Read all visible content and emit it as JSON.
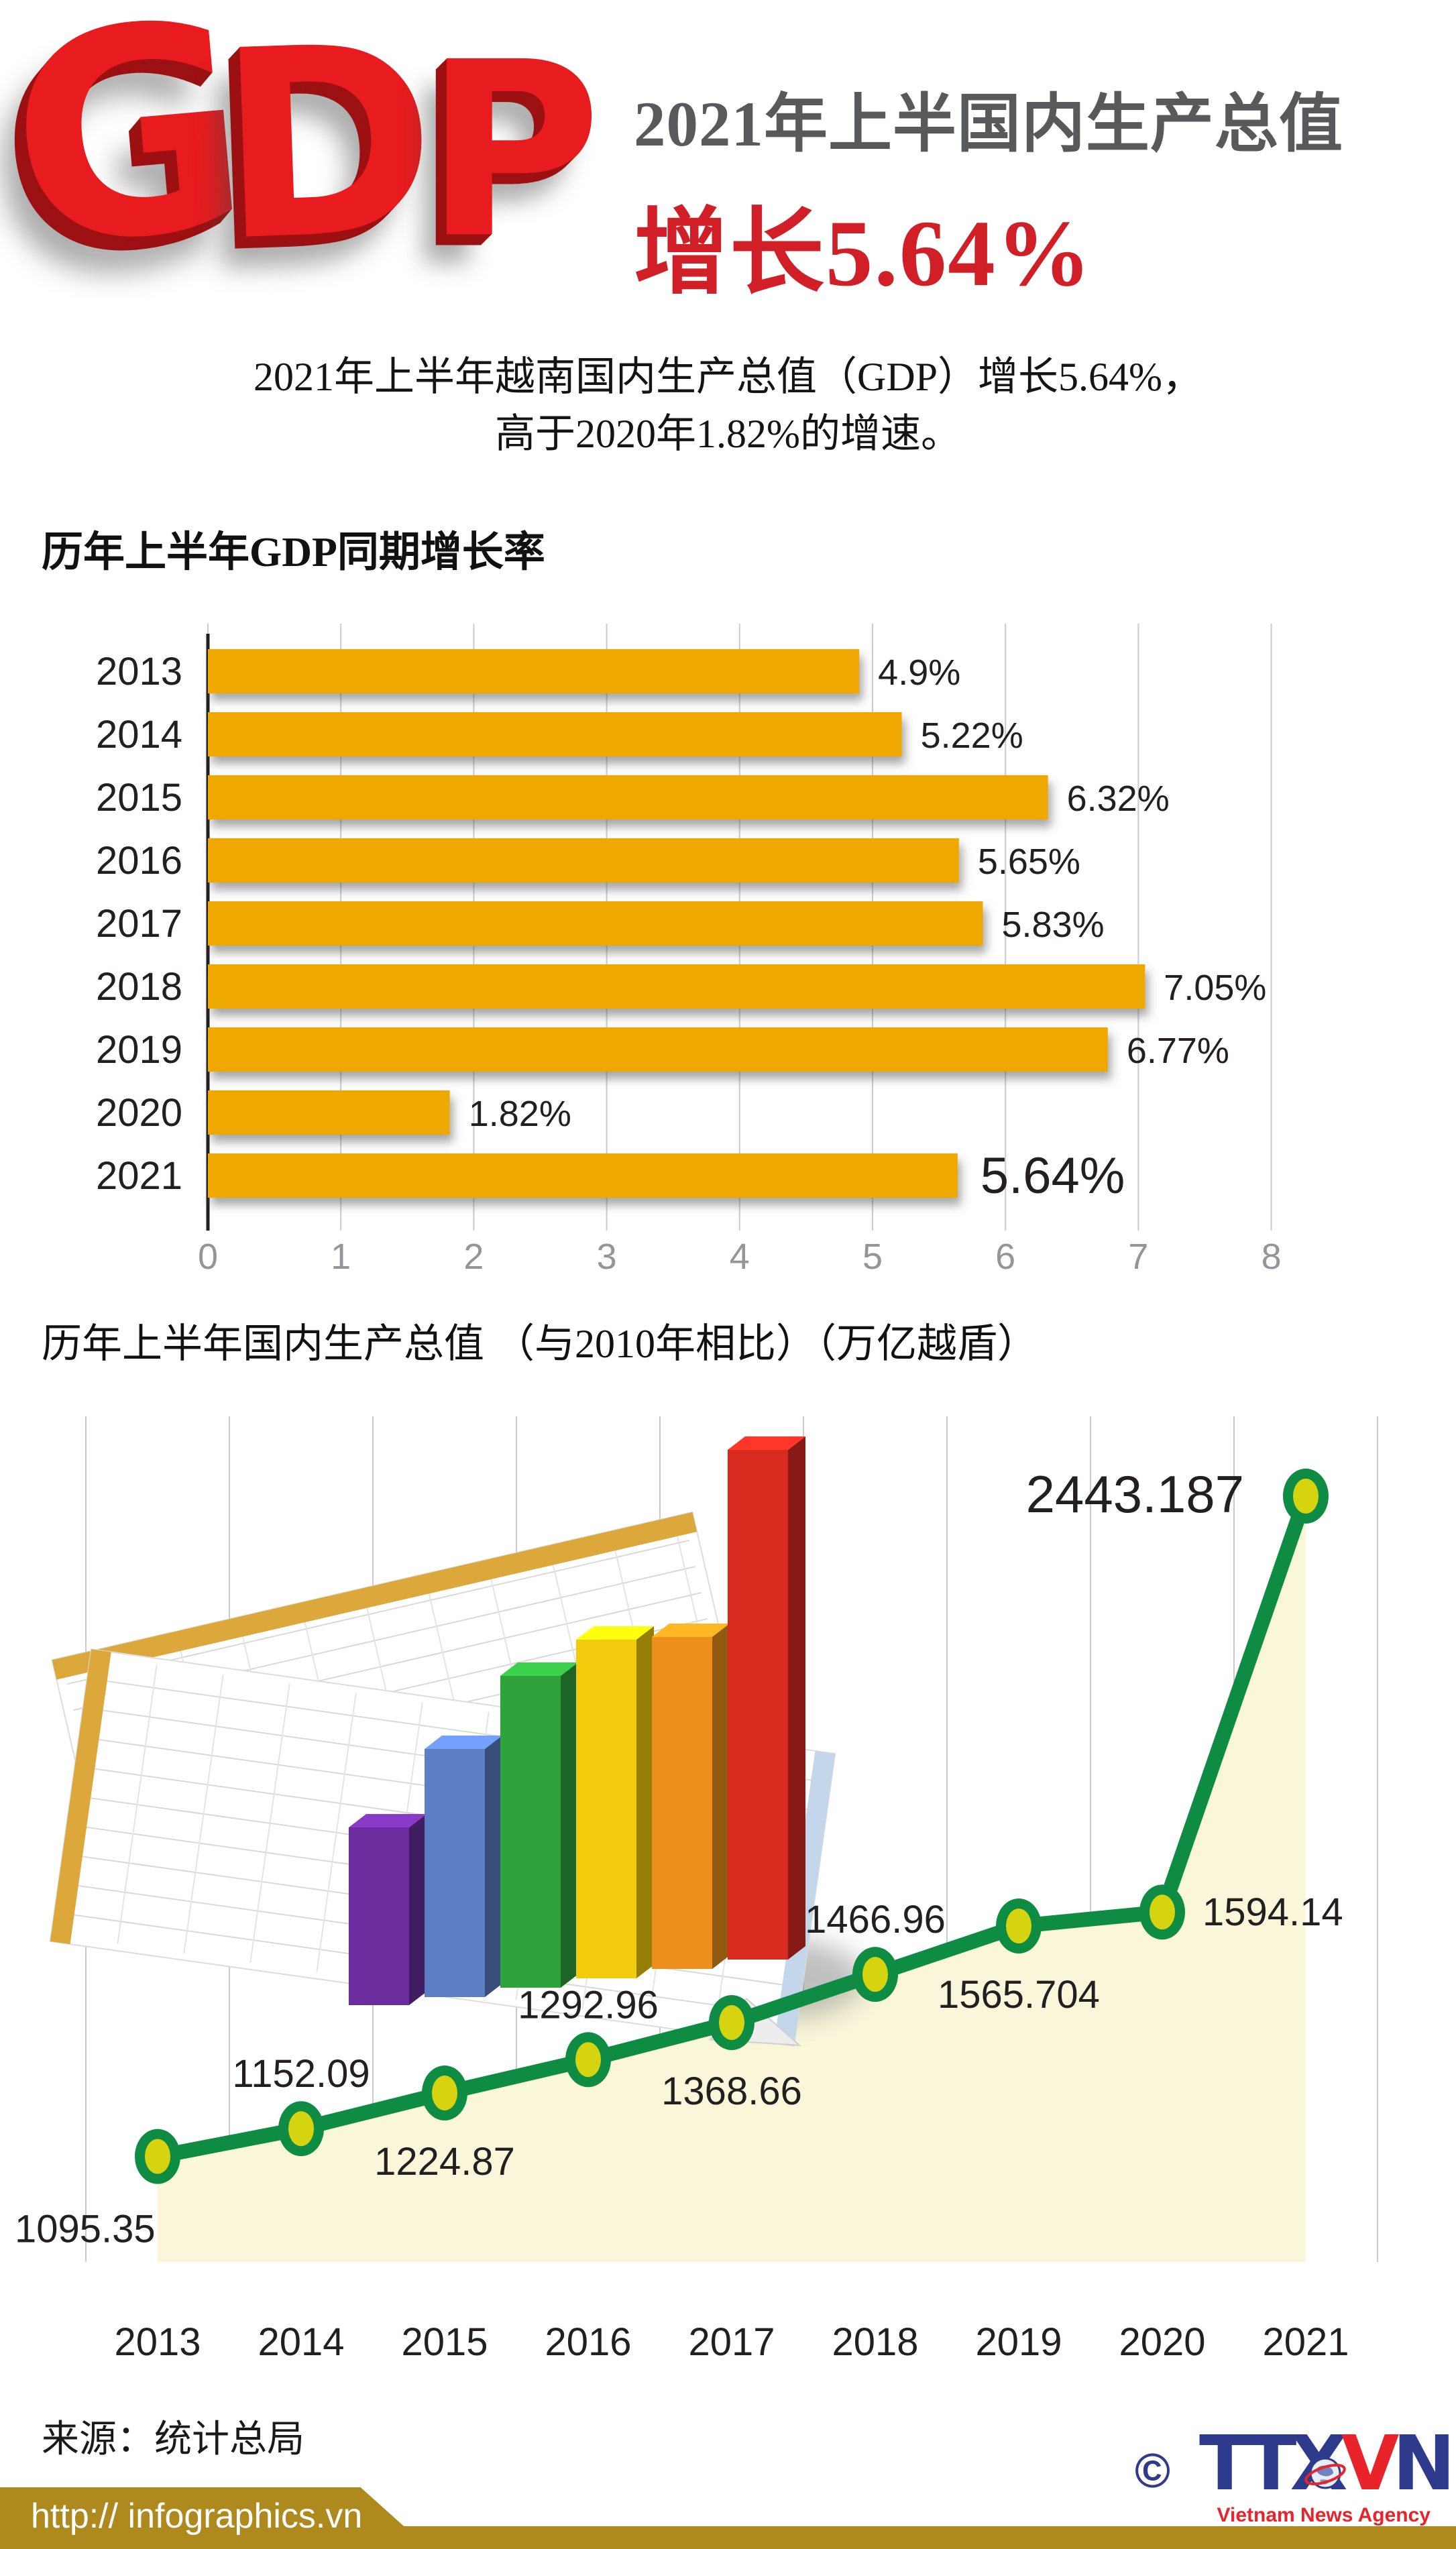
{
  "header": {
    "logo_text": "GDP",
    "logo_color": "#E81B1E",
    "title_line1": "2021年上半国内生产总值",
    "title_line2": "增长5.64%",
    "title_gray": "#58595B",
    "accent_red": "#D01F26"
  },
  "intro": {
    "line1": "2021年上半年越南国内生产总值（GDP）增长5.64%，",
    "line2": "高于2020年1.82%的增速。"
  },
  "chart_data": [
    {
      "type": "bar",
      "orientation": "horizontal",
      "title": "历年上半年GDP同期增长率",
      "categories": [
        "2013",
        "2014",
        "2015",
        "2016",
        "2017",
        "2018",
        "2019",
        "2020",
        "2021"
      ],
      "values": [
        4.9,
        5.22,
        6.32,
        5.65,
        5.83,
        7.05,
        6.77,
        1.82,
        5.64
      ],
      "labels": [
        "4.9%",
        "5.22%",
        "6.32%",
        "5.65%",
        "5.83%",
        "7.05%",
        "6.77%",
        "1.82%",
        "5.64%"
      ],
      "xlim": [
        0,
        8
      ],
      "x_ticks": [
        "0",
        "1",
        "2",
        "3",
        "4",
        "5",
        "6",
        "7",
        "8"
      ],
      "bar_color": "#EFA800",
      "grid": "vertical",
      "grid_color": "#C9CBCD",
      "axis_color": "#231F20",
      "tick_label_color": "#939598",
      "value_label_color": "#231F20"
    },
    {
      "type": "line",
      "title": "历年上半年国内生产总值 （与2010年相比）（万亿越盾）",
      "x": [
        "2013",
        "2014",
        "2015",
        "2016",
        "2017",
        "2018",
        "2019",
        "2020",
        "2021"
      ],
      "values": [
        1095.35,
        1152.09,
        1224.87,
        1292.96,
        1368.66,
        1466.96,
        1565.704,
        1594.14,
        2443.187
      ],
      "labels": [
        "1095.35",
        "1152.09",
        "1224.87",
        "1292.96",
        "1368.66",
        "1466.96",
        "1565.704",
        "1594.14",
        "2443.187"
      ],
      "label_placement": [
        "below-left",
        "above",
        "below",
        "above",
        "below",
        "above",
        "below",
        "right",
        "left"
      ],
      "line_color": "#0E8C44",
      "marker_fill": "#D6D411",
      "marker_ring": "#0E8C44",
      "area_fill": "#FAF6DA",
      "grid": "vertical",
      "grid_color": "#C9CBCD",
      "label_color": "#231F20"
    }
  ],
  "clipart": {
    "name": "3d-bar-chart-on-spreadsheets",
    "bar_colors": [
      "#6B2D9D",
      "#5B7EC5",
      "#2FA33B",
      "#F2CC0C",
      "#EC8F1C",
      "#D92A20"
    ],
    "sheet_edge_gold": "#DCA73B",
    "sheet_edge_blue": "#C3D6EA"
  },
  "footer": {
    "source": "来源：统计总局",
    "copyright": "©",
    "agency": {
      "part1": "TTX",
      "part2": "V",
      "part3": "N",
      "subtitle": "Vietnam News Agency",
      "blue": "#2E3A8C",
      "red": "#E8232A"
    },
    "url": "http:// infographics.vn",
    "band_color": "#AE8A1E"
  }
}
